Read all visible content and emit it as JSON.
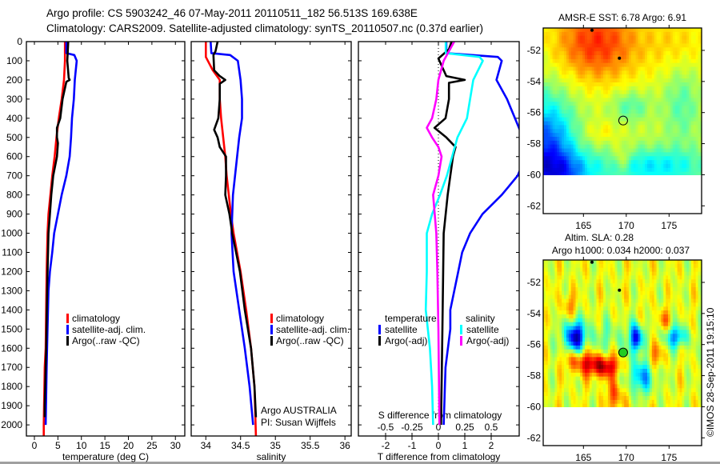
{
  "title": {
    "line1": "Argo profile: CS 5903242_46 07-May-2011 20110511_182 56.513S 169.638E",
    "line2": "Climatology: CARS2009. Satellite-adjusted climatology: synTS_20110507.nc (0.37d earlier)"
  },
  "credit": "©IMOS 28-Sep-2011 19:15:10",
  "colors": {
    "climatology": "#ff0000",
    "satellite": "#0000ff",
    "argo": "#000000",
    "sal_satellite": "#00ffff",
    "sal_argo": "#ff00ff"
  },
  "chart_data": [
    {
      "id": "temperature",
      "type": "line",
      "xlabel": "temperature (deg C)",
      "ylabel": "",
      "xlim": [
        -1.7,
        32
      ],
      "ylim": [
        2058,
        0
      ],
      "xticks": [
        0,
        5,
        10,
        15,
        20,
        25,
        30
      ],
      "xtick_labels": [
        "0",
        "5",
        "10",
        "15",
        "20",
        "25",
        "30"
      ],
      "yticks": [
        0,
        100,
        200,
        300,
        400,
        500,
        600,
        700,
        800,
        900,
        1000,
        1100,
        1200,
        1300,
        1400,
        1500,
        1600,
        1700,
        1800,
        1900,
        2000
      ],
      "ytick_labels": [
        "0",
        "100",
        "200",
        "300",
        "400",
        "500",
        "600",
        "700",
        "800",
        "900",
        "1000",
        "1100",
        "1200",
        "1300",
        "1400",
        "1500",
        "1600",
        "1700",
        "1800",
        "1900",
        "2000"
      ],
      "legend": {
        "location": "lower-center",
        "entries": [
          "climatology",
          "satellite-adj. clim.",
          "Argo(..raw -QC)"
        ]
      },
      "series": [
        {
          "name": "climatology",
          "color": "#ff0000",
          "depth": [
            0,
            100,
            200,
            300,
            400,
            500,
            600,
            700,
            800,
            900,
            1000,
            1200,
            1400,
            1600,
            1700,
            2000,
            2058
          ],
          "values": [
            6.5,
            6.5,
            6.3,
            5.8,
            5.2,
            4.7,
            4.3,
            3.8,
            3.4,
            3.0,
            2.8,
            2.6,
            2.5,
            2.4,
            2.2,
            2.0,
            2.0
          ]
        },
        {
          "name": "satellite-adj. clim.",
          "color": "#0000ff",
          "depth": [
            0,
            60,
            70,
            100,
            200,
            300,
            400,
            500,
            600,
            700,
            800,
            900,
            1000,
            1100,
            1200,
            1300,
            1500,
            1700,
            2000
          ],
          "values": [
            6.8,
            6.8,
            8.5,
            9.0,
            8.6,
            8.4,
            8.0,
            7.8,
            7.5,
            6.8,
            5.8,
            5.0,
            4.2,
            3.8,
            3.3,
            3.0,
            2.8,
            2.6,
            2.4
          ]
        },
        {
          "name": "Argo(..raw -QC)",
          "color": "#000000",
          "depth": [
            0,
            100,
            190,
            200,
            210,
            300,
            400,
            450,
            500,
            530,
            600,
            700,
            800,
            900,
            1000,
            1300,
            1600,
            1900,
            1960
          ],
          "values": [
            7.2,
            7.0,
            7.3,
            7.5,
            6.8,
            6.0,
            5.5,
            4.8,
            4.8,
            5.0,
            4.8,
            4.0,
            3.6,
            3.3,
            3.0,
            2.7,
            2.5,
            2.2,
            2.2
          ]
        }
      ]
    },
    {
      "id": "salinity",
      "type": "line",
      "xlabel": "salinity",
      "ylabel": "",
      "xlim": [
        33.79,
        36.09
      ],
      "ylim": [
        2058,
        0
      ],
      "xticks": [
        34,
        34.5,
        35,
        35.5,
        36
      ],
      "xtick_labels": [
        "34",
        "34.5",
        "35",
        "35.5",
        "36"
      ],
      "yticks": [
        0,
        100,
        200,
        300,
        400,
        500,
        600,
        700,
        800,
        900,
        1000,
        1100,
        1200,
        1300,
        1400,
        1500,
        1600,
        1700,
        1800,
        1900,
        2000
      ],
      "legend": {
        "location": "lower-center",
        "entries": [
          "climatology",
          "satellite-adj. clim.",
          "Argo(..raw -QC)"
        ]
      },
      "annotations": [
        "Argo AUSTRALIA",
        "PI: Susan Wijffels"
      ],
      "series": [
        {
          "name": "climatology",
          "color": "#ff0000",
          "depth": [
            0,
            80,
            150,
            200,
            300,
            400,
            500,
            600,
            700,
            800,
            900,
            1000,
            1200,
            1400,
            1600,
            1800,
            2058
          ],
          "values": [
            34.0,
            34.0,
            34.1,
            34.2,
            34.2,
            34.22,
            34.25,
            34.28,
            34.3,
            34.33,
            34.36,
            34.4,
            34.5,
            34.58,
            34.65,
            34.7,
            34.72
          ]
        },
        {
          "name": "satellite-adj. clim.",
          "color": "#0000ff",
          "depth": [
            0,
            60,
            70,
            100,
            200,
            300,
            400,
            500,
            600,
            700,
            800,
            1000,
            1200,
            1400,
            1600,
            1800,
            2000
          ],
          "values": [
            34.07,
            34.08,
            34.35,
            34.46,
            34.5,
            34.52,
            34.52,
            34.48,
            34.45,
            34.42,
            34.39,
            34.37,
            34.4,
            34.48,
            34.56,
            34.63,
            34.68
          ]
        },
        {
          "name": "Argo(..raw -QC)",
          "color": "#000000",
          "depth": [
            0,
            50,
            70,
            150,
            180,
            200,
            220,
            300,
            400,
            460,
            500,
            550,
            600,
            700,
            800,
            900,
            1000,
            1200,
            1400,
            1600,
            1800,
            1960
          ],
          "values": [
            34.17,
            34.14,
            34.11,
            34.12,
            34.2,
            34.28,
            34.2,
            34.2,
            34.18,
            34.12,
            34.17,
            34.2,
            34.29,
            34.29,
            34.28,
            34.34,
            34.38,
            34.49,
            34.56,
            34.65,
            34.7,
            34.72
          ]
        }
      ]
    },
    {
      "id": "differences",
      "type": "line",
      "xlabel": "T difference from climatology",
      "x2label": "S difference from climatology",
      "xlim": [
        -3.03,
        3.06
      ],
      "x2lim": [
        -0.76,
        0.765
      ],
      "ylim": [
        2058,
        0
      ],
      "xticks": [
        -2,
        -1,
        0,
        1,
        2
      ],
      "xtick_labels": [
        "-2",
        "-1",
        "0",
        "1",
        "2"
      ],
      "x2ticks": [
        -0.5,
        -0.25,
        0,
        0.25,
        0.5
      ],
      "x2tick_labels": [
        "-0.5",
        "-0.25",
        "0",
        "0.25",
        "0.5"
      ],
      "yticks": [
        0,
        100,
        200,
        300,
        400,
        500,
        600,
        700,
        800,
        900,
        1000,
        1100,
        1200,
        1300,
        1400,
        1500,
        1600,
        1700,
        1800,
        1900,
        2000
      ],
      "legend": {
        "location": "lower-center",
        "headers": [
          "temperature",
          "salinity"
        ],
        "temperature_entries": [
          "satellite",
          "Argo(-adj)"
        ],
        "salinity_entries": [
          "satellite",
          "Argo(-adj)"
        ]
      },
      "series": [
        {
          "name": "temperature satellite",
          "axis": "T",
          "color": "#0000ff",
          "depth": [
            0,
            60,
            80,
            100,
            200,
            300,
            400,
            500,
            600,
            700,
            800,
            900,
            1000,
            1100,
            1200,
            1400,
            1500,
            1700,
            2000
          ],
          "values": [
            0.3,
            0.3,
            2.25,
            2.4,
            2.2,
            2.6,
            2.9,
            3.2,
            3.3,
            3.0,
            2.4,
            1.67,
            1.2,
            0.9,
            0.75,
            0.45,
            0.45,
            0.27,
            0.2
          ]
        },
        {
          "name": "temperature Argo(-adj)",
          "axis": "T",
          "color": "#000000",
          "depth": [
            0,
            40,
            88,
            180,
            200,
            215,
            300,
            400,
            450,
            500,
            550,
            600,
            800,
            1000,
            1500,
            2000
          ],
          "values": [
            0.5,
            0.4,
            0.0,
            0.3,
            1.0,
            0.4,
            0.4,
            0.27,
            -0.15,
            0.3,
            0.65,
            0.55,
            0.35,
            0.2,
            0.15,
            0.1
          ]
        },
        {
          "name": "salinity satellite",
          "axis": "S",
          "color": "#00ffff",
          "depth": [
            0,
            60,
            80,
            100,
            200,
            300,
            400,
            500,
            600,
            700,
            800,
            900,
            1000,
            1200,
            1400,
            1600,
            1800,
            2000
          ],
          "values": [
            0.07,
            0.07,
            0.39,
            0.42,
            0.33,
            0.3,
            0.27,
            0.18,
            0.13,
            0.08,
            0.015,
            -0.06,
            -0.11,
            -0.11,
            -0.12,
            -0.08,
            -0.06,
            -0.05
          ]
        },
        {
          "name": "salinity Argo(-adj)",
          "axis": "S",
          "color": "#ff00ff",
          "depth": [
            0,
            100,
            200,
            300,
            400,
            450,
            500,
            550,
            600,
            700,
            800,
            1000,
            1200,
            1500,
            2000
          ],
          "values": [
            0.15,
            0.05,
            0.0,
            -0.02,
            -0.06,
            -0.11,
            -0.06,
            0.0,
            0.03,
            0.0,
            -0.05,
            -0.02,
            -0.01,
            0.0,
            0.01
          ]
        }
      ]
    },
    {
      "id": "sst-map",
      "type": "heatmap",
      "title": "AMSR-E SST: 6.78 Argo: 6.91",
      "xlim": [
        160.3,
        178.8
      ],
      "ylim": [
        -62.5,
        -50.56
      ],
      "xticks": [
        165,
        170,
        175
      ],
      "xtick_labels": [
        "165",
        "170",
        "175"
      ],
      "yticks": [
        -52,
        -54,
        -56,
        -58,
        -60,
        -62
      ],
      "ytick_labels": [
        "-52",
        "-54",
        "-56",
        "-58",
        "-60",
        "-62"
      ],
      "colormap": "jet",
      "profile_position": {
        "lon": 169.638,
        "lat": -56.513
      },
      "other_floats": [
        {
          "lon": 166.0,
          "lat": -50.7
        },
        {
          "lon": 169.2,
          "lat": -52.5
        }
      ]
    },
    {
      "id": "sla-map",
      "type": "heatmap",
      "title": "Altim. SLA: 0.28",
      "subtitle": "Argo h1000: 0.034 h2000: 0.037",
      "xlim": [
        160.3,
        178.8
      ],
      "ylim": [
        -62.5,
        -50.56
      ],
      "xticks": [
        165,
        170,
        175
      ],
      "xtick_labels": [
        "165",
        "170",
        "175"
      ],
      "yticks": [
        -52,
        -54,
        -56,
        -58,
        -60,
        -62
      ],
      "ytick_labels": [
        "-52",
        "-54",
        "-56",
        "-58",
        "-60",
        "-62"
      ],
      "colormap": "jet",
      "profile_position": {
        "lon": 169.638,
        "lat": -56.513
      },
      "other_floats": [
        {
          "lon": 166.0,
          "lat": -50.7
        },
        {
          "lon": 169.2,
          "lat": -52.5
        }
      ]
    }
  ]
}
